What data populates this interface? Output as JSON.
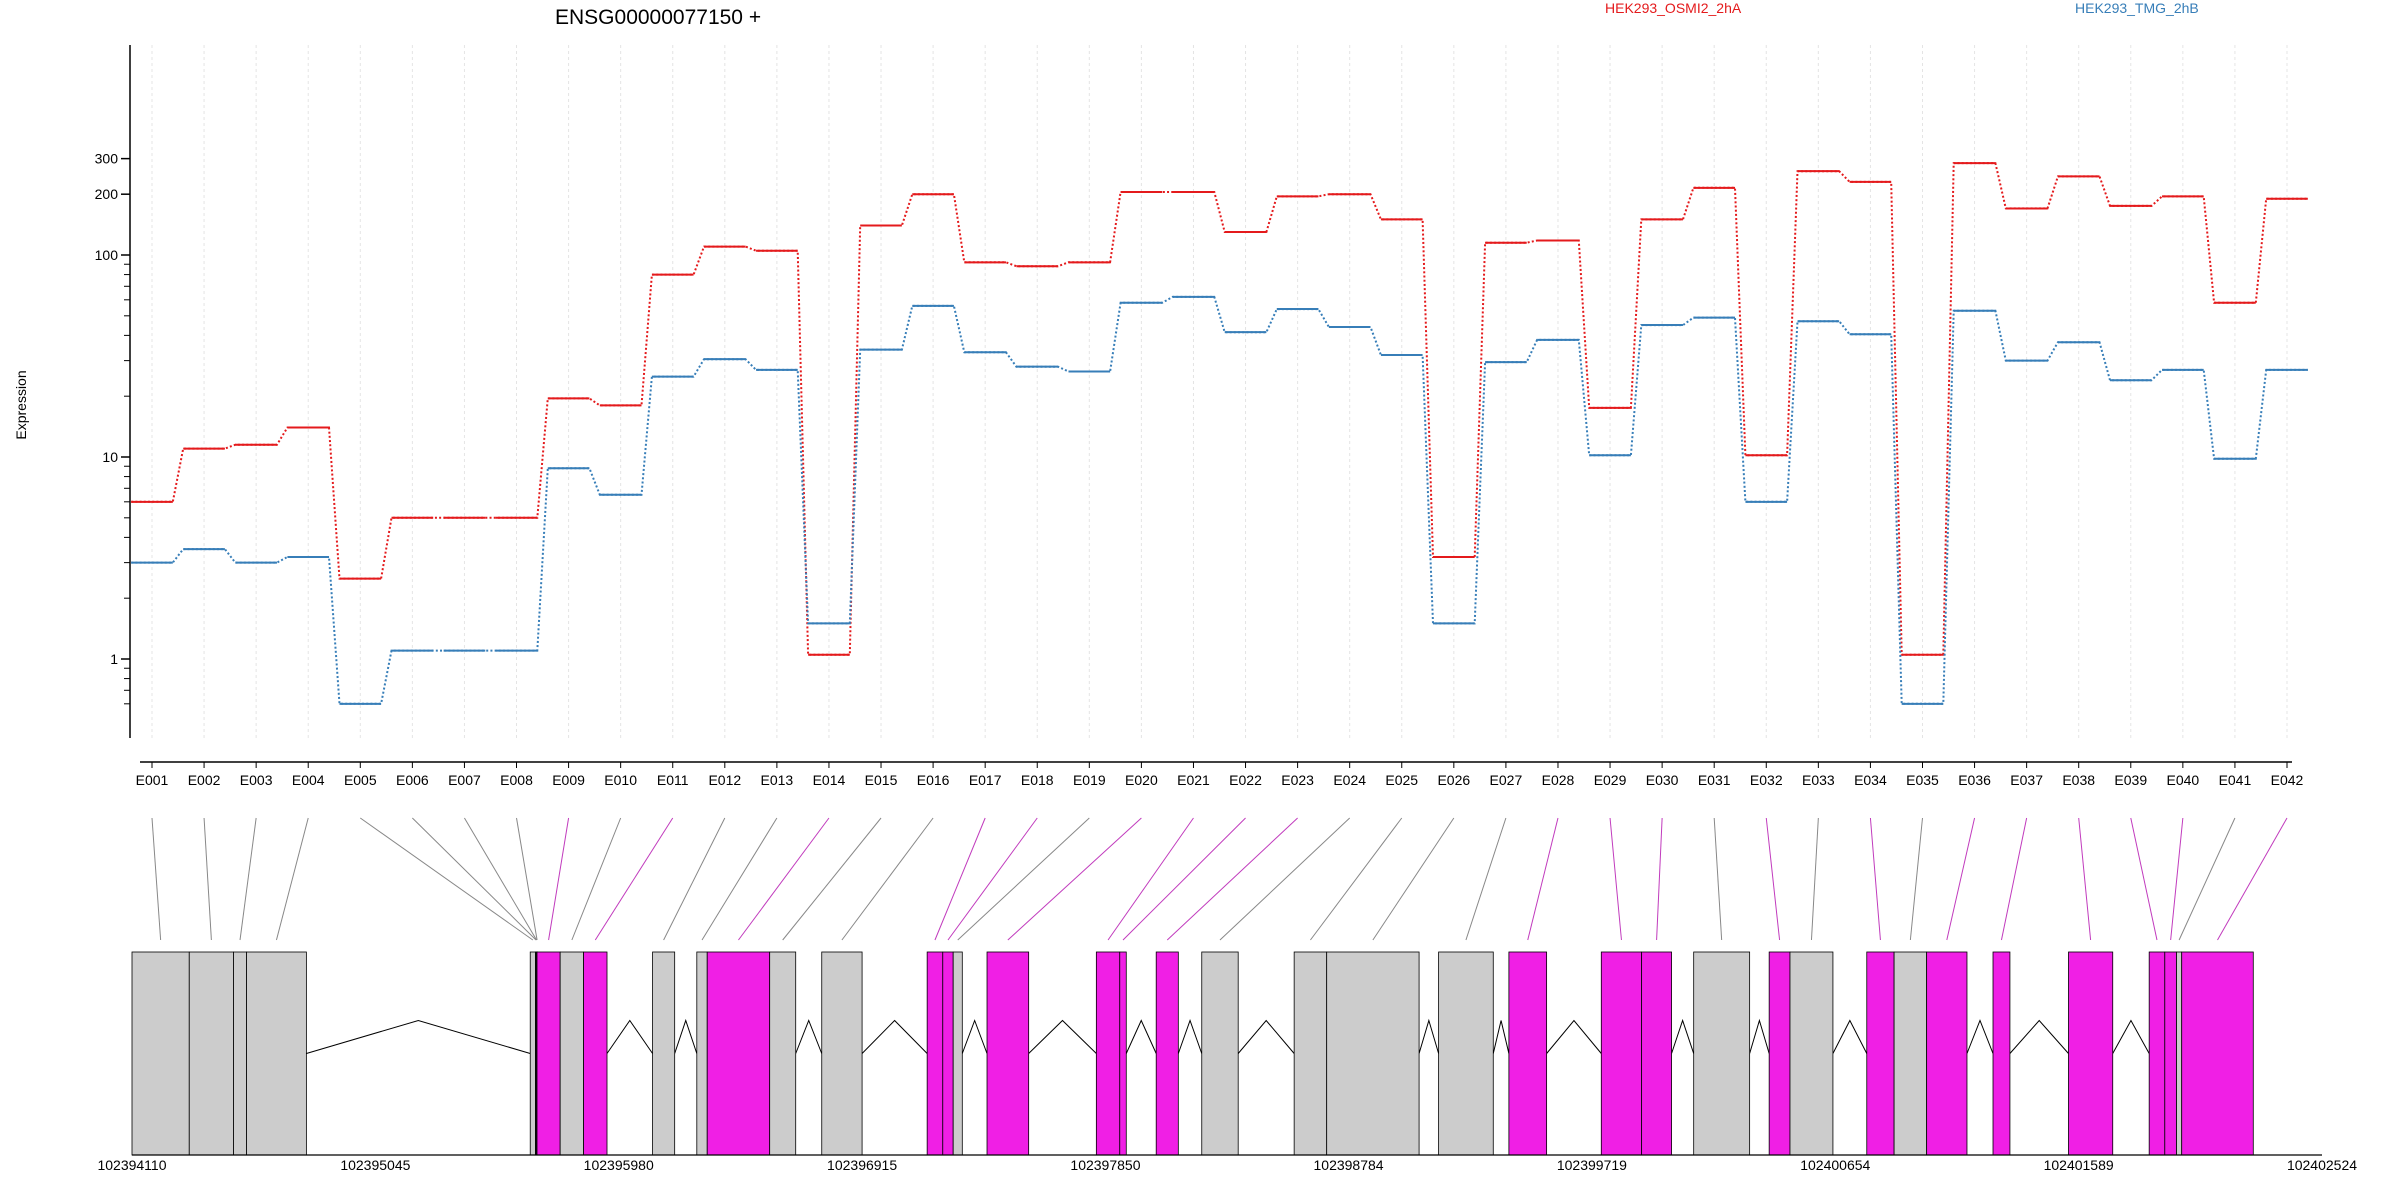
{
  "header": {
    "title": "ENSG00000077150 +",
    "legend": [
      {
        "name": "HEK293_OSMI2_2hA",
        "color": "#e41a1c"
      },
      {
        "name": "HEK293_TMG_2hB",
        "color": "#377eb8"
      }
    ]
  },
  "chart_data": {
    "type": "line",
    "ylabel": "Expression",
    "yscale": "log",
    "ylim": [
      0.5,
      400
    ],
    "y_tick_labels": [
      "1",
      "10",
      "100",
      "200",
      "300"
    ],
    "grid": "vertical dotted lines at each exon",
    "categories": [
      "E001",
      "E002",
      "E003",
      "E004",
      "E005",
      "E006",
      "E007",
      "E008",
      "E009",
      "E010",
      "E011",
      "E012",
      "E013",
      "E014",
      "E015",
      "E016",
      "E017",
      "E018",
      "E019",
      "E020",
      "E021",
      "E022",
      "E023",
      "E024",
      "E025",
      "E026",
      "E027",
      "E028",
      "E029",
      "E030",
      "E031",
      "E032",
      "E033",
      "E034",
      "E035",
      "E036",
      "E037",
      "E038",
      "E039",
      "E040",
      "E041",
      "E042"
    ],
    "series": [
      {
        "name": "HEK293_OSMI2_2hA",
        "color": "#e41a1c",
        "values": [
          6,
          11,
          11.5,
          14,
          2.5,
          5,
          5,
          5,
          19.5,
          18,
          80,
          110,
          105,
          1.05,
          140,
          200,
          92,
          88,
          92,
          205,
          205,
          130,
          195,
          200,
          150,
          3.2,
          115,
          118,
          17.5,
          150,
          215,
          10.2,
          260,
          230,
          1.05,
          285,
          170,
          245,
          175,
          195,
          58,
          190
        ]
      },
      {
        "name": "HEK293_TMG_2hB",
        "color": "#377eb8",
        "values": [
          3,
          3.5,
          3,
          3.2,
          0.6,
          1.1,
          1.1,
          1.1,
          8.8,
          6.5,
          25,
          30.5,
          27,
          1.5,
          34,
          56,
          33,
          28,
          26.5,
          58,
          62,
          41.5,
          54,
          44,
          32,
          1.5,
          29.5,
          38,
          10.2,
          45,
          49,
          6,
          47,
          40.5,
          0.6,
          53,
          30,
          37,
          24,
          27,
          9.8,
          27
        ]
      }
    ],
    "gene_model": {
      "coordinate_labels": [
        "102394110",
        "102395045",
        "102395980",
        "102396915",
        "102397850",
        "102398784",
        "102399719",
        "102400654",
        "102401589",
        "102402524"
      ],
      "coord_range": [
        102394110,
        102402524
      ],
      "exons": [
        {
          "id": "E001",
          "start": 102394110,
          "end": 102394330,
          "highlight": false
        },
        {
          "id": "E002",
          "start": 102394330,
          "end": 102394500,
          "highlight": false
        },
        {
          "id": "E003",
          "start": 102394500,
          "end": 102394550,
          "highlight": false
        },
        {
          "id": "E004",
          "start": 102394550,
          "end": 102394780,
          "highlight": false
        },
        {
          "id": "E005",
          "start": 102395640,
          "end": 102395660,
          "highlight": false
        },
        {
          "id": "E006",
          "start": 102395660,
          "end": 102395662,
          "highlight": false
        },
        {
          "id": "E007",
          "start": 102395662,
          "end": 102395664,
          "highlight": false
        },
        {
          "id": "E008",
          "start": 102395664,
          "end": 102395666,
          "highlight": false
        },
        {
          "id": "E009",
          "start": 102395666,
          "end": 102395755,
          "highlight": true
        },
        {
          "id": "E010",
          "start": 102395755,
          "end": 102395845,
          "highlight": false
        },
        {
          "id": "E011",
          "start": 102395845,
          "end": 102395935,
          "highlight": true
        },
        {
          "id": "E012",
          "start": 102396110,
          "end": 102396195,
          "highlight": false
        },
        {
          "id": "E013",
          "start": 102396280,
          "end": 102396320,
          "highlight": false
        },
        {
          "id": "E014",
          "start": 102396320,
          "end": 102396560,
          "highlight": true
        },
        {
          "id": "E015",
          "start": 102396560,
          "end": 102396660,
          "highlight": false
        },
        {
          "id": "E016",
          "start": 102396760,
          "end": 102396915,
          "highlight": false
        },
        {
          "id": "E017",
          "start": 102397165,
          "end": 102397225,
          "highlight": true
        },
        {
          "id": "E018",
          "start": 102397225,
          "end": 102397265,
          "highlight": true
        },
        {
          "id": "E019",
          "start": 102397265,
          "end": 102397300,
          "highlight": false
        },
        {
          "id": "E020",
          "start": 102397395,
          "end": 102397555,
          "highlight": true
        },
        {
          "id": "E021",
          "start": 102397815,
          "end": 102397905,
          "highlight": true
        },
        {
          "id": "E022",
          "start": 102397905,
          "end": 102397930,
          "highlight": true
        },
        {
          "id": "E023",
          "start": 102398045,
          "end": 102398130,
          "highlight": true
        },
        {
          "id": "E024",
          "start": 102398220,
          "end": 102398360,
          "highlight": false
        },
        {
          "id": "E025",
          "start": 102398575,
          "end": 102398700,
          "highlight": false
        },
        {
          "id": "E026",
          "start": 102398700,
          "end": 102399055,
          "highlight": false
        },
        {
          "id": "E027",
          "start": 102399130,
          "end": 102399340,
          "highlight": false
        },
        {
          "id": "E028",
          "start": 102399400,
          "end": 102399545,
          "highlight": true
        },
        {
          "id": "E029",
          "start": 102399755,
          "end": 102399910,
          "highlight": true
        },
        {
          "id": "E030",
          "start": 102399910,
          "end": 102400025,
          "highlight": true
        },
        {
          "id": "E031",
          "start": 102400110,
          "end": 102400325,
          "highlight": false
        },
        {
          "id": "E032",
          "start": 102400400,
          "end": 102400480,
          "highlight": true
        },
        {
          "id": "E033",
          "start": 102400480,
          "end": 102400645,
          "highlight": false
        },
        {
          "id": "E034",
          "start": 102400775,
          "end": 102400880,
          "highlight": true
        },
        {
          "id": "E035",
          "start": 102400880,
          "end": 102401005,
          "highlight": false
        },
        {
          "id": "E036",
          "start": 102401005,
          "end": 102401160,
          "highlight": true
        },
        {
          "id": "E037",
          "start": 102401260,
          "end": 102401325,
          "highlight": true
        },
        {
          "id": "E038",
          "start": 102401550,
          "end": 102401720,
          "highlight": true
        },
        {
          "id": "E039",
          "start": 102401860,
          "end": 102401920,
          "highlight": true
        },
        {
          "id": "E040",
          "start": 102401920,
          "end": 102401965,
          "highlight": true
        },
        {
          "id": "E041",
          "start": 102401965,
          "end": 102401985,
          "highlight": false
        },
        {
          "id": "E042",
          "start": 102401985,
          "end": 102402260,
          "highlight": true
        }
      ]
    }
  }
}
